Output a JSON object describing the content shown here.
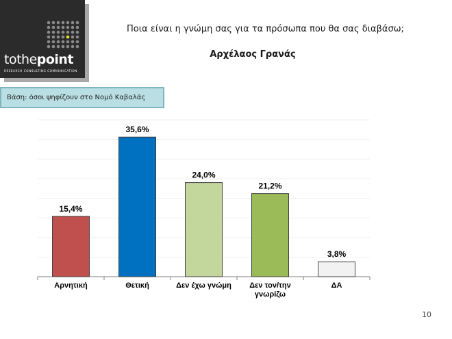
{
  "logo": {
    "brand_prefix": "tothe",
    "brand_suffix": "point",
    "tagline": "RESEARCH  CONSULTING  COMMUNICATION",
    "colors": {
      "background": "#2b2b2b",
      "dots": "#8a8a8a",
      "accent_dot": "#e6e62e"
    }
  },
  "header": {
    "question": "Ποια είναι η γνώμη σας για τα πρόσωπα που θα σας διαβάσω;",
    "person": "Αρχέλαος Γρανάς"
  },
  "base_note": "Βάση: όσοι ψηφίζουν στο  Νομό Καβαλάς",
  "page_number": "10",
  "chart_data": {
    "type": "bar",
    "categories": [
      [
        "Αρνητική"
      ],
      [
        "Θετική"
      ],
      [
        "Δεν έχω γνώμη"
      ],
      [
        "Δεν τον/την",
        "γνωρίζω"
      ],
      [
        "ΔΑ"
      ]
    ],
    "values": [
      15.4,
      35.6,
      24.0,
      21.2,
      3.8
    ],
    "value_labels": [
      "15,4%",
      "35,6%",
      "24,0%",
      "21,2%",
      "3,8%"
    ],
    "colors": [
      "#c0504d",
      "#0070c0",
      "#c3d69b",
      "#9bbb59",
      "#f2f2f2"
    ],
    "ylim": [
      0,
      40
    ],
    "grid": true,
    "xlabel": "",
    "ylabel": ""
  }
}
